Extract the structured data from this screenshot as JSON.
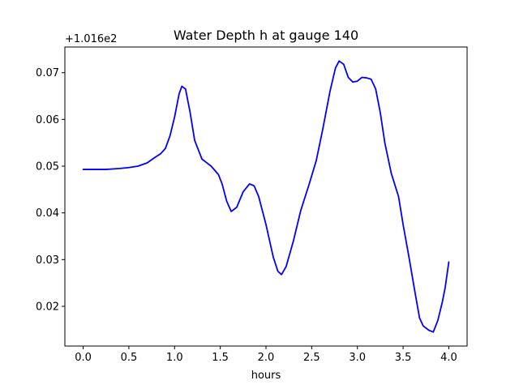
{
  "chart_data": {
    "type": "line",
    "title": "Water Depth h at gauge 140",
    "xlabel": "hours",
    "ylabel": "",
    "y_offset_label": "+1.016e2",
    "y_offset": 101.6,
    "xlim": [
      -0.2,
      4.2
    ],
    "ylim": [
      0.0115,
      0.0755
    ],
    "x_ticks": [
      0.0,
      0.5,
      1.0,
      1.5,
      2.0,
      2.5,
      3.0,
      3.5,
      4.0
    ],
    "x_tick_labels": [
      "0.0",
      "0.5",
      "1.0",
      "1.5",
      "2.0",
      "2.5",
      "3.0",
      "3.5",
      "4.0"
    ],
    "y_ticks": [
      0.02,
      0.03,
      0.04,
      0.05,
      0.06,
      0.07
    ],
    "y_tick_labels": [
      "0.02",
      "0.03",
      "0.04",
      "0.05",
      "0.06",
      "0.07"
    ],
    "grid": false,
    "series": [
      {
        "color": "#0000ff",
        "x": [
          0.0,
          0.1,
          0.25,
          0.4,
          0.5,
          0.6,
          0.7,
          0.78,
          0.85,
          0.9,
          0.95,
          1.0,
          1.05,
          1.08,
          1.12,
          1.17,
          1.22,
          1.3,
          1.4,
          1.48,
          1.52,
          1.57,
          1.62,
          1.68,
          1.75,
          1.82,
          1.87,
          1.92,
          2.0,
          2.08,
          2.13,
          2.17,
          2.22,
          2.3,
          2.38,
          2.47,
          2.55,
          2.62,
          2.7,
          2.76,
          2.8,
          2.85,
          2.9,
          2.95,
          3.0,
          3.05,
          3.1,
          3.15,
          3.2,
          3.25,
          3.3,
          3.37,
          3.45,
          3.5,
          3.56,
          3.63,
          3.68,
          3.72,
          3.78,
          3.83,
          3.88,
          3.93,
          3.96,
          4.0
        ],
        "y": [
          0.0493,
          0.0493,
          0.0493,
          0.0495,
          0.0497,
          0.05,
          0.0507,
          0.0518,
          0.0527,
          0.0538,
          0.0565,
          0.0605,
          0.0655,
          0.0671,
          0.0665,
          0.0615,
          0.0555,
          0.0515,
          0.05,
          0.0482,
          0.0462,
          0.0425,
          0.0403,
          0.0412,
          0.0445,
          0.0462,
          0.0458,
          0.0435,
          0.0375,
          0.0305,
          0.0275,
          0.0268,
          0.0285,
          0.034,
          0.0405,
          0.046,
          0.0512,
          0.0578,
          0.066,
          0.071,
          0.0725,
          0.0718,
          0.069,
          0.068,
          0.0682,
          0.069,
          0.0689,
          0.0686,
          0.0665,
          0.0615,
          0.055,
          0.0485,
          0.0435,
          0.0375,
          0.031,
          0.023,
          0.0175,
          0.0158,
          0.0149,
          0.0145,
          0.017,
          0.021,
          0.024,
          0.0295
        ]
      }
    ]
  }
}
